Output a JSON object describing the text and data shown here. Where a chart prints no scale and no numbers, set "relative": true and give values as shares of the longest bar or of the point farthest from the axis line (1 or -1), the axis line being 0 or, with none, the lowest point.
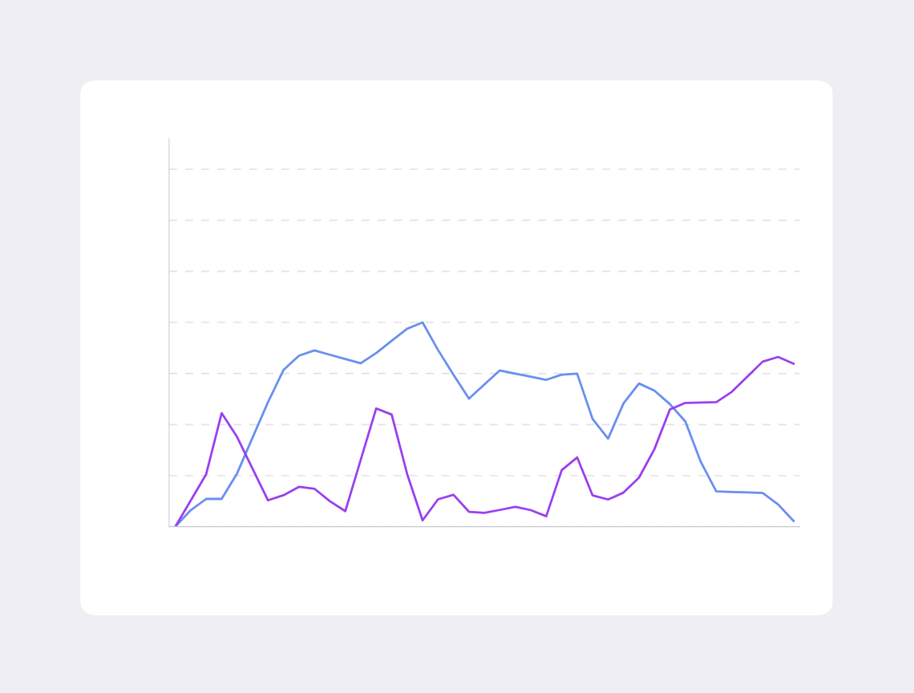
{
  "chart_data": {
    "type": "line",
    "relative": true,
    "grid": "y",
    "marker": "none",
    "line_style": "solid",
    "categories": [
      null,
      null,
      null,
      null,
      null,
      null,
      null,
      null,
      null,
      null,
      null,
      null,
      null,
      null,
      null,
      null,
      null,
      null,
      null,
      null,
      null,
      null,
      null,
      null,
      null,
      null,
      null,
      null,
      null,
      null,
      null,
      null,
      null,
      null,
      null,
      null,
      null,
      null,
      null,
      null,
      null
    ],
    "series": [
      {
        "color": "#6a8ff0",
        "values": [
          0,
          0.081,
          0.136,
          0.136,
          0.261,
          0.436,
          0.61,
          0.767,
          0.837,
          0.863,
          0.842,
          0.821,
          0.8,
          0.85,
          0.91,
          0.969,
          1,
          0.865,
          0.744,
          0.627,
          0.697,
          0.765,
          0.749,
          0.734,
          0.719,
          0.744,
          0.749,
          0.527,
          0.431,
          0.604,
          0.701,
          0.666,
          0.6,
          0.515,
          0.317,
          0.173,
          0.17,
          0.168,
          0.165,
          0.109,
          0.028
        ]
      },
      {
        "color": "#9b3ff0",
        "values": [
          0,
          0.128,
          0.257,
          0.556,
          0.439,
          0.284,
          0.129,
          0.154,
          0.195,
          0.186,
          0.125,
          0.076,
          0.328,
          0.579,
          0.549,
          0.258,
          0.031,
          0.134,
          0.156,
          0.073,
          0.068,
          0.082,
          0.097,
          0.081,
          0.051,
          0.277,
          0.339,
          0.153,
          0.133,
          0.167,
          0.24,
          0.38,
          0.574,
          0.606,
          0.608,
          0.61,
          0.66,
          0.734,
          0.808,
          0.831,
          0.798
        ]
      }
    ]
  }
}
